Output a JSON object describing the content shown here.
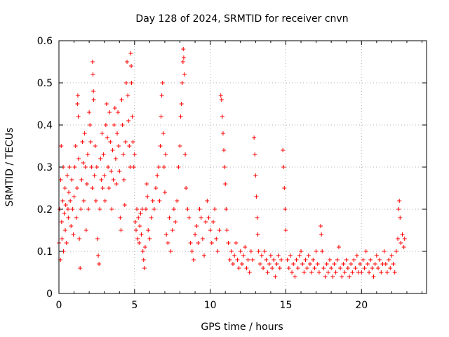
{
  "chart_data": {
    "type": "scatter",
    "title": "Day 128 of 2024, SRMTID for receiver cnvn",
    "xlabel": "GPS time / hours",
    "ylabel": "SRMTID / TECUs",
    "xlim": [
      0,
      24.3
    ],
    "ylim": [
      0,
      0.6
    ],
    "x_ticks": [
      0,
      5,
      10,
      15,
      20
    ],
    "x_tick_labels": [
      "0",
      "5",
      "10",
      "15",
      "20"
    ],
    "y_ticks": [
      0,
      0.1,
      0.2,
      0.3,
      0.4,
      0.5,
      0.6
    ],
    "y_tick_labels": [
      "0",
      "0.1",
      "0.2",
      "0.3",
      "0.4",
      "0.5",
      "0.6"
    ],
    "grid": true,
    "marker": "+",
    "color": "#ff0000",
    "series": [
      {
        "name": "cnvn",
        "points": [
          [
            0.0,
            0.12
          ],
          [
            0.05,
            0.2
          ],
          [
            0.1,
            0.08
          ],
          [
            0.12,
            0.27
          ],
          [
            0.15,
            0.35
          ],
          [
            0.18,
            0.17
          ],
          [
            0.2,
            0.13
          ],
          [
            0.25,
            0.22
          ],
          [
            0.28,
            0.3
          ],
          [
            0.3,
            0.1
          ],
          [
            0.35,
            0.19
          ],
          [
            0.4,
            0.25
          ],
          [
            0.42,
            0.15
          ],
          [
            0.45,
            0.21
          ],
          [
            0.5,
            0.12
          ],
          [
            0.55,
            0.28
          ],
          [
            0.6,
            0.2
          ],
          [
            0.62,
            0.18
          ],
          [
            0.65,
            0.24
          ],
          [
            0.7,
            0.3
          ],
          [
            0.75,
            0.22
          ],
          [
            0.8,
            0.16
          ],
          [
            0.85,
            0.27
          ],
          [
            0.9,
            0.2
          ],
          [
            0.95,
            0.14
          ],
          [
            1.0,
            0.23
          ],
          [
            1.05,
            0.3
          ],
          [
            1.1,
            0.35
          ],
          [
            1.15,
            0.18
          ],
          [
            1.2,
            0.25
          ],
          [
            1.22,
            0.45
          ],
          [
            1.25,
            0.47
          ],
          [
            1.28,
            0.42
          ],
          [
            1.3,
            0.32
          ],
          [
            1.35,
            0.13
          ],
          [
            1.4,
            0.06
          ],
          [
            1.45,
            0.2
          ],
          [
            1.5,
            0.27
          ],
          [
            1.55,
            0.36
          ],
          [
            1.6,
            0.31
          ],
          [
            1.65,
            0.22
          ],
          [
            1.7,
            0.38
          ],
          [
            1.75,
            0.3
          ],
          [
            1.8,
            0.15
          ],
          [
            1.85,
            0.26
          ],
          [
            1.9,
            0.33
          ],
          [
            1.95,
            0.2
          ],
          [
            2.0,
            0.43
          ],
          [
            2.05,
            0.4
          ],
          [
            2.1,
            0.36
          ],
          [
            2.15,
            0.3
          ],
          [
            2.2,
            0.25
          ],
          [
            2.22,
            0.55
          ],
          [
            2.25,
            0.52
          ],
          [
            2.28,
            0.48
          ],
          [
            2.3,
            0.46
          ],
          [
            2.35,
            0.28
          ],
          [
            2.4,
            0.35
          ],
          [
            2.45,
            0.22
          ],
          [
            2.5,
            0.3
          ],
          [
            2.55,
            0.13
          ],
          [
            2.6,
            0.09
          ],
          [
            2.65,
            0.07
          ],
          [
            2.7,
            0.2
          ],
          [
            2.75,
            0.32
          ],
          [
            2.8,
            0.27
          ],
          [
            2.85,
            0.38
          ],
          [
            2.9,
            0.25
          ],
          [
            2.95,
            0.33
          ],
          [
            3.0,
            0.28
          ],
          [
            3.05,
            0.22
          ],
          [
            3.1,
            0.4
          ],
          [
            3.15,
            0.45
          ],
          [
            3.2,
            0.37
          ],
          [
            3.25,
            0.3
          ],
          [
            3.3,
            0.25
          ],
          [
            3.35,
            0.43
          ],
          [
            3.4,
            0.36
          ],
          [
            3.45,
            0.29
          ],
          [
            3.5,
            0.2
          ],
          [
            3.55,
            0.34
          ],
          [
            3.6,
            0.27
          ],
          [
            3.65,
            0.4
          ],
          [
            3.7,
            0.44
          ],
          [
            3.75,
            0.32
          ],
          [
            3.8,
            0.26
          ],
          [
            3.85,
            0.38
          ],
          [
            3.9,
            0.43
          ],
          [
            3.95,
            0.35
          ],
          [
            4.0,
            0.29
          ],
          [
            4.05,
            0.18
          ],
          [
            4.1,
            0.15
          ],
          [
            4.15,
            0.46
          ],
          [
            4.2,
            0.4
          ],
          [
            4.25,
            0.33
          ],
          [
            4.3,
            0.27
          ],
          [
            4.35,
            0.21
          ],
          [
            4.4,
            0.36
          ],
          [
            4.45,
            0.5
          ],
          [
            4.5,
            0.55
          ],
          [
            4.55,
            0.47
          ],
          [
            4.6,
            0.41
          ],
          [
            4.65,
            0.35
          ],
          [
            4.7,
            0.3
          ],
          [
            4.75,
            0.57
          ],
          [
            4.78,
            0.54
          ],
          [
            4.8,
            0.5
          ],
          [
            4.85,
            0.42
          ],
          [
            4.9,
            0.36
          ],
          [
            4.95,
            0.3
          ],
          [
            5.0,
            0.33
          ],
          [
            5.05,
            0.17
          ],
          [
            5.1,
            0.15
          ],
          [
            5.15,
            0.2
          ],
          [
            5.2,
            0.13
          ],
          [
            5.25,
            0.18
          ],
          [
            5.3,
            0.12
          ],
          [
            5.35,
            0.16
          ],
          [
            5.4,
            0.19
          ],
          [
            5.45,
            0.14
          ],
          [
            5.5,
            0.2
          ],
          [
            5.55,
            0.1
          ],
          [
            5.6,
            0.08
          ],
          [
            5.65,
            0.06
          ],
          [
            5.7,
            0.11
          ],
          [
            5.75,
            0.2
          ],
          [
            5.8,
            0.26
          ],
          [
            5.85,
            0.23
          ],
          [
            5.9,
            0.15
          ],
          [
            6.0,
            0.13
          ],
          [
            6.1,
            0.18
          ],
          [
            6.2,
            0.22
          ],
          [
            6.3,
            0.2
          ],
          [
            6.4,
            0.25
          ],
          [
            6.5,
            0.28
          ],
          [
            6.6,
            0.3
          ],
          [
            6.65,
            0.22
          ],
          [
            6.7,
            0.35
          ],
          [
            6.75,
            0.42
          ],
          [
            6.8,
            0.47
          ],
          [
            6.85,
            0.5
          ],
          [
            6.9,
            0.38
          ],
          [
            6.95,
            0.3
          ],
          [
            7.0,
            0.24
          ],
          [
            7.05,
            0.33
          ],
          [
            7.1,
            0.14
          ],
          [
            7.2,
            0.12
          ],
          [
            7.3,
            0.18
          ],
          [
            7.4,
            0.1
          ],
          [
            7.5,
            0.15
          ],
          [
            7.6,
            0.2
          ],
          [
            7.7,
            0.17
          ],
          [
            7.8,
            0.22
          ],
          [
            7.9,
            0.3
          ],
          [
            8.0,
            0.35
          ],
          [
            8.05,
            0.42
          ],
          [
            8.1,
            0.45
          ],
          [
            8.15,
            0.5
          ],
          [
            8.2,
            0.55
          ],
          [
            8.22,
            0.58
          ],
          [
            8.25,
            0.56
          ],
          [
            8.3,
            0.52
          ],
          [
            8.35,
            0.33
          ],
          [
            8.4,
            0.25
          ],
          [
            8.5,
            0.2
          ],
          [
            8.6,
            0.18
          ],
          [
            8.7,
            0.12
          ],
          [
            8.8,
            0.1
          ],
          [
            8.9,
            0.08
          ],
          [
            9.0,
            0.14
          ],
          [
            9.1,
            0.16
          ],
          [
            9.2,
            0.12
          ],
          [
            9.3,
            0.2
          ],
          [
            9.4,
            0.18
          ],
          [
            9.5,
            0.13
          ],
          [
            9.6,
            0.09
          ],
          [
            9.7,
            0.17
          ],
          [
            9.8,
            0.22
          ],
          [
            9.9,
            0.18
          ],
          [
            10.0,
            0.15
          ],
          [
            10.1,
            0.12
          ],
          [
            10.2,
            0.17
          ],
          [
            10.3,
            0.2
          ],
          [
            10.4,
            0.13
          ],
          [
            10.5,
            0.1
          ],
          [
            10.6,
            0.15
          ],
          [
            10.7,
            0.47
          ],
          [
            10.75,
            0.46
          ],
          [
            10.8,
            0.42
          ],
          [
            10.85,
            0.38
          ],
          [
            10.9,
            0.34
          ],
          [
            10.95,
            0.3
          ],
          [
            11.0,
            0.26
          ],
          [
            11.05,
            0.2
          ],
          [
            11.1,
            0.15
          ],
          [
            11.2,
            0.12
          ],
          [
            11.3,
            0.08
          ],
          [
            11.4,
            0.1
          ],
          [
            11.5,
            0.07
          ],
          [
            11.6,
            0.09
          ],
          [
            11.7,
            0.12
          ],
          [
            11.8,
            0.08
          ],
          [
            11.9,
            0.06
          ],
          [
            12.0,
            0.1
          ],
          [
            12.1,
            0.07
          ],
          [
            12.2,
            0.09
          ],
          [
            12.3,
            0.11
          ],
          [
            12.4,
            0.06
          ],
          [
            12.5,
            0.08
          ],
          [
            12.6,
            0.05
          ],
          [
            12.7,
            0.1
          ],
          [
            12.8,
            0.08
          ],
          [
            12.9,
            0.37
          ],
          [
            12.95,
            0.33
          ],
          [
            13.0,
            0.28
          ],
          [
            13.05,
            0.23
          ],
          [
            13.1,
            0.18
          ],
          [
            13.15,
            0.14
          ],
          [
            13.2,
            0.1
          ],
          [
            13.3,
            0.07
          ],
          [
            13.4,
            0.09
          ],
          [
            13.5,
            0.06
          ],
          [
            13.6,
            0.1
          ],
          [
            13.7,
            0.08
          ],
          [
            13.8,
            0.05
          ],
          [
            13.9,
            0.07
          ],
          [
            14.0,
            0.09
          ],
          [
            14.1,
            0.06
          ],
          [
            14.2,
            0.08
          ],
          [
            14.3,
            0.04
          ],
          [
            14.4,
            0.07
          ],
          [
            14.5,
            0.09
          ],
          [
            14.6,
            0.06
          ],
          [
            14.7,
            0.08
          ],
          [
            14.8,
            0.34
          ],
          [
            14.85,
            0.3
          ],
          [
            14.9,
            0.25
          ],
          [
            14.95,
            0.2
          ],
          [
            15.0,
            0.15
          ],
          [
            15.1,
            0.08
          ],
          [
            15.2,
            0.06
          ],
          [
            15.3,
            0.09
          ],
          [
            15.4,
            0.05
          ],
          [
            15.5,
            0.07
          ],
          [
            15.6,
            0.04
          ],
          [
            15.7,
            0.08
          ],
          [
            15.8,
            0.06
          ],
          [
            15.9,
            0.09
          ],
          [
            16.0,
            0.1
          ],
          [
            16.1,
            0.07
          ],
          [
            16.2,
            0.05
          ],
          [
            16.3,
            0.08
          ],
          [
            16.4,
            0.06
          ],
          [
            16.5,
            0.09
          ],
          [
            16.6,
            0.07
          ],
          [
            16.7,
            0.05
          ],
          [
            16.8,
            0.08
          ],
          [
            16.9,
            0.06
          ],
          [
            17.0,
            0.1
          ],
          [
            17.1,
            0.07
          ],
          [
            17.2,
            0.05
          ],
          [
            17.3,
            0.16
          ],
          [
            17.35,
            0.14
          ],
          [
            17.4,
            0.1
          ],
          [
            17.5,
            0.06
          ],
          [
            17.6,
            0.04
          ],
          [
            17.7,
            0.07
          ],
          [
            17.8,
            0.05
          ],
          [
            17.9,
            0.08
          ],
          [
            18.0,
            0.06
          ],
          [
            18.1,
            0.04
          ],
          [
            18.2,
            0.07
          ],
          [
            18.3,
            0.05
          ],
          [
            18.4,
            0.08
          ],
          [
            18.5,
            0.11
          ],
          [
            18.6,
            0.06
          ],
          [
            18.7,
            0.04
          ],
          [
            18.8,
            0.07
          ],
          [
            18.9,
            0.05
          ],
          [
            19.0,
            0.08
          ],
          [
            19.1,
            0.06
          ],
          [
            19.2,
            0.04
          ],
          [
            19.3,
            0.07
          ],
          [
            19.4,
            0.05
          ],
          [
            19.5,
            0.08
          ],
          [
            19.6,
            0.06
          ],
          [
            19.7,
            0.09
          ],
          [
            19.8,
            0.05
          ],
          [
            19.9,
            0.07
          ],
          [
            20.0,
            0.05
          ],
          [
            20.1,
            0.08
          ],
          [
            20.2,
            0.06
          ],
          [
            20.3,
            0.1
          ],
          [
            20.4,
            0.07
          ],
          [
            20.5,
            0.05
          ],
          [
            20.6,
            0.08
          ],
          [
            20.7,
            0.06
          ],
          [
            20.8,
            0.04
          ],
          [
            20.9,
            0.07
          ],
          [
            21.0,
            0.09
          ],
          [
            21.1,
            0.06
          ],
          [
            21.2,
            0.08
          ],
          [
            21.3,
            0.05
          ],
          [
            21.4,
            0.07
          ],
          [
            21.5,
            0.1
          ],
          [
            21.6,
            0.07
          ],
          [
            21.7,
            0.05
          ],
          [
            21.8,
            0.08
          ],
          [
            21.9,
            0.06
          ],
          [
            22.0,
            0.09
          ],
          [
            22.1,
            0.07
          ],
          [
            22.2,
            0.05
          ],
          [
            22.3,
            0.1
          ],
          [
            22.4,
            0.13
          ],
          [
            22.45,
            0.2
          ],
          [
            22.5,
            0.22
          ],
          [
            22.55,
            0.18
          ],
          [
            22.6,
            0.12
          ],
          [
            22.7,
            0.14
          ],
          [
            22.8,
            0.11
          ],
          [
            22.85,
            0.13
          ]
        ]
      }
    ]
  }
}
